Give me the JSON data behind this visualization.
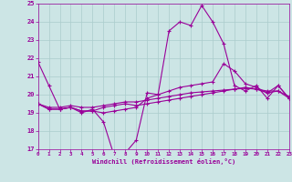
{
  "xlabel": "Windchill (Refroidissement éolien,°C)",
  "background_color": "#cce5e5",
  "grid_color": "#aacccc",
  "line_color": "#990099",
  "ylim": [
    17,
    25
  ],
  "xlim": [
    0,
    23
  ],
  "yticks": [
    17,
    18,
    19,
    20,
    21,
    22,
    23,
    24,
    25
  ],
  "xticks": [
    0,
    1,
    2,
    3,
    4,
    5,
    6,
    7,
    8,
    9,
    10,
    11,
    12,
    13,
    14,
    15,
    16,
    17,
    18,
    19,
    20,
    21,
    22,
    23
  ],
  "series": [
    [
      21.8,
      20.5,
      19.2,
      19.3,
      19.0,
      19.2,
      18.5,
      16.6,
      16.8,
      17.5,
      20.1,
      20.0,
      23.5,
      24.0,
      23.8,
      24.9,
      24.0,
      22.8,
      20.5,
      20.2,
      20.5,
      19.8,
      20.5,
      19.8
    ],
    [
      19.5,
      19.2,
      19.2,
      19.3,
      19.1,
      19.1,
      19.0,
      19.1,
      19.2,
      19.3,
      19.8,
      20.0,
      20.2,
      20.4,
      20.5,
      20.6,
      20.7,
      21.7,
      21.3,
      20.6,
      20.4,
      20.1,
      20.5,
      19.8
    ],
    [
      19.5,
      19.2,
      19.2,
      19.3,
      19.1,
      19.1,
      19.3,
      19.4,
      19.5,
      19.4,
      19.5,
      19.6,
      19.7,
      19.8,
      19.9,
      20.0,
      20.1,
      20.2,
      20.3,
      20.4,
      20.3,
      20.1,
      20.2,
      19.8
    ],
    [
      19.5,
      19.3,
      19.3,
      19.4,
      19.3,
      19.3,
      19.4,
      19.5,
      19.6,
      19.6,
      19.7,
      19.8,
      19.9,
      20.0,
      20.1,
      20.15,
      20.2,
      20.25,
      20.3,
      20.35,
      20.3,
      20.2,
      20.2,
      19.9
    ]
  ]
}
